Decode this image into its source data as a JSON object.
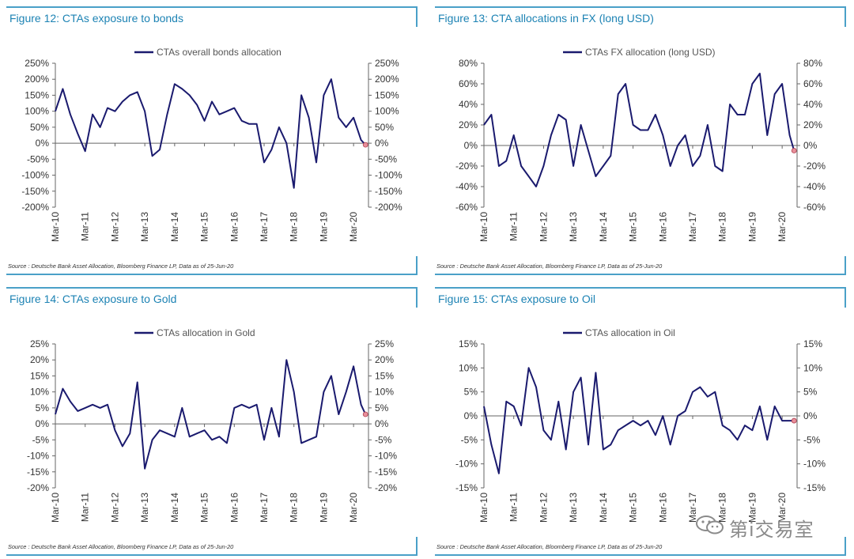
{
  "colors": {
    "line": "#1a1a6e",
    "accent": "#4aa0c8",
    "title": "#1d83b4",
    "endpoint": "#e88f9a"
  },
  "source_text": "Source : Deutsche Bank Asset Allocation, Bloomberg Finance LP, Data as of 25-Jun-20",
  "watermark": {
    "text": "第i交易室",
    "icon": "wechat-icon"
  },
  "chart_data": [
    {
      "type": "line",
      "title": "Figure 12: CTAs exposure to bonds",
      "series": [
        {
          "name": "CTAs overall bonds allocation",
          "x": [
            2010.0,
            2010.25,
            2010.5,
            2010.75,
            2011.0,
            2011.25,
            2011.5,
            2011.75,
            2012.0,
            2012.25,
            2012.5,
            2012.75,
            2013.0,
            2013.25,
            2013.5,
            2013.75,
            2014.0,
            2014.25,
            2014.5,
            2014.75,
            2015.0,
            2015.25,
            2015.5,
            2015.75,
            2016.0,
            2016.25,
            2016.5,
            2016.75,
            2017.0,
            2017.25,
            2017.5,
            2017.75,
            2018.0,
            2018.25,
            2018.5,
            2018.75,
            2019.0,
            2019.25,
            2019.5,
            2019.75,
            2020.0,
            2020.25,
            2020.4
          ],
          "values": [
            100,
            170,
            90,
            30,
            -25,
            90,
            50,
            110,
            100,
            130,
            150,
            160,
            100,
            -40,
            -20,
            90,
            185,
            170,
            150,
            120,
            70,
            130,
            90,
            100,
            110,
            70,
            60,
            60,
            -60,
            -20,
            50,
            0,
            -140,
            150,
            80,
            -60,
            150,
            200,
            80,
            50,
            80,
            10,
            -5
          ]
        }
      ],
      "ylim": [
        -200,
        250
      ],
      "yticks": [
        -200,
        -150,
        -100,
        -50,
        0,
        50,
        100,
        150,
        200,
        250
      ],
      "ytick_labels": [
        "-200%",
        "-150%",
        "-100%",
        "-50%",
        "0%",
        "50%",
        "100%",
        "150%",
        "200%",
        "250%"
      ],
      "xticks": [
        2010,
        2011,
        2012,
        2013,
        2014,
        2015,
        2016,
        2017,
        2018,
        2019,
        2020
      ],
      "xtick_labels": [
        "Mar-10",
        "Mar-11",
        "Mar-12",
        "Mar-13",
        "Mar-14",
        "Mar-15",
        "Mar-16",
        "Mar-17",
        "Mar-18",
        "Mar-19",
        "Mar-20"
      ],
      "xlim": [
        2010,
        2020.5
      ],
      "legend_position": "top-center"
    },
    {
      "type": "line",
      "title": "Figure 13: CTA allocations in FX (long USD)",
      "series": [
        {
          "name": "CTAs FX allocation (long USD)",
          "x": [
            2010.0,
            2010.25,
            2010.5,
            2010.75,
            2011.0,
            2011.25,
            2011.5,
            2011.75,
            2012.0,
            2012.25,
            2012.5,
            2012.75,
            2013.0,
            2013.25,
            2013.5,
            2013.75,
            2014.0,
            2014.25,
            2014.5,
            2014.75,
            2015.0,
            2015.25,
            2015.5,
            2015.75,
            2016.0,
            2016.25,
            2016.5,
            2016.75,
            2017.0,
            2017.25,
            2017.5,
            2017.75,
            2018.0,
            2018.25,
            2018.5,
            2018.75,
            2019.0,
            2019.25,
            2019.5,
            2019.75,
            2020.0,
            2020.25,
            2020.4
          ],
          "values": [
            20,
            30,
            -20,
            -15,
            10,
            -20,
            -30,
            -40,
            -20,
            10,
            30,
            25,
            -20,
            20,
            -5,
            -30,
            -20,
            -10,
            50,
            60,
            20,
            15,
            15,
            30,
            10,
            -20,
            0,
            10,
            -20,
            -10,
            20,
            -20,
            -25,
            40,
            30,
            30,
            60,
            70,
            10,
            50,
            60,
            10,
            -5
          ]
        }
      ],
      "ylim": [
        -60,
        80
      ],
      "yticks": [
        -60,
        -40,
        -20,
        0,
        20,
        40,
        60,
        80
      ],
      "ytick_labels": [
        "-60%",
        "-40%",
        "-20%",
        "0%",
        "20%",
        "40%",
        "60%",
        "80%"
      ],
      "xticks": [
        2010,
        2011,
        2012,
        2013,
        2014,
        2015,
        2016,
        2017,
        2018,
        2019,
        2020
      ],
      "xtick_labels": [
        "Mar-10",
        "Mar-11",
        "Mar-12",
        "Mar-13",
        "Mar-14",
        "Mar-15",
        "Mar-16",
        "Mar-17",
        "Mar-18",
        "Mar-19",
        "Mar-20"
      ],
      "xlim": [
        2010,
        2020.5
      ],
      "legend_position": "top-center"
    },
    {
      "type": "line",
      "title": "Figure 14: CTAs exposure to Gold",
      "series": [
        {
          "name": "CTAs allocation in Gold",
          "x": [
            2010.0,
            2010.25,
            2010.5,
            2010.75,
            2011.0,
            2011.25,
            2011.5,
            2011.75,
            2012.0,
            2012.25,
            2012.5,
            2012.75,
            2013.0,
            2013.25,
            2013.5,
            2013.75,
            2014.0,
            2014.25,
            2014.5,
            2014.75,
            2015.0,
            2015.25,
            2015.5,
            2015.75,
            2016.0,
            2016.25,
            2016.5,
            2016.75,
            2017.0,
            2017.25,
            2017.5,
            2017.75,
            2018.0,
            2018.25,
            2018.5,
            2018.75,
            2019.0,
            2019.25,
            2019.5,
            2019.75,
            2020.0,
            2020.25,
            2020.4
          ],
          "values": [
            3,
            11,
            7,
            4,
            5,
            6,
            5,
            6,
            -2,
            -7,
            -3,
            13,
            -14,
            -5,
            -2,
            -3,
            -4,
            5,
            -4,
            -3,
            -2,
            -5,
            -4,
            -6,
            5,
            6,
            5,
            6,
            -5,
            5,
            -4,
            20,
            10,
            -6,
            -5,
            -4,
            10,
            15,
            3,
            10,
            18,
            6,
            3
          ]
        }
      ],
      "ylim": [
        -20,
        25
      ],
      "yticks": [
        -20,
        -15,
        -10,
        -5,
        0,
        5,
        10,
        15,
        20,
        25
      ],
      "ytick_labels": [
        "-20%",
        "-15%",
        "-10%",
        "-5%",
        "0%",
        "5%",
        "10%",
        "15%",
        "20%",
        "25%"
      ],
      "xticks": [
        2010,
        2011,
        2012,
        2013,
        2014,
        2015,
        2016,
        2017,
        2018,
        2019,
        2020
      ],
      "xtick_labels": [
        "Mar-10",
        "Mar-11",
        "Mar-12",
        "Mar-13",
        "Mar-14",
        "Mar-15",
        "Mar-16",
        "Mar-17",
        "Mar-18",
        "Mar-19",
        "Mar-20"
      ],
      "xlim": [
        2010,
        2020.5
      ],
      "legend_position": "top-center"
    },
    {
      "type": "line",
      "title": "Figure 15: CTAs exposure to Oil",
      "series": [
        {
          "name": "CTAs allocation in Oil",
          "x": [
            2010.0,
            2010.25,
            2010.5,
            2010.75,
            2011.0,
            2011.25,
            2011.5,
            2011.75,
            2012.0,
            2012.25,
            2012.5,
            2012.75,
            2013.0,
            2013.25,
            2013.5,
            2013.75,
            2014.0,
            2014.25,
            2014.5,
            2014.75,
            2015.0,
            2015.25,
            2015.5,
            2015.75,
            2016.0,
            2016.25,
            2016.5,
            2016.75,
            2017.0,
            2017.25,
            2017.5,
            2017.75,
            2018.0,
            2018.25,
            2018.5,
            2018.75,
            2019.0,
            2019.25,
            2019.5,
            2019.75,
            2020.0,
            2020.25,
            2020.4
          ],
          "values": [
            2,
            -6,
            -12,
            3,
            2,
            -2,
            10,
            6,
            -3,
            -5,
            3,
            -7,
            5,
            8,
            -6,
            9,
            -7,
            -6,
            -3,
            -2,
            -1,
            -2,
            -1,
            -4,
            0,
            -6,
            0,
            1,
            5,
            6,
            4,
            5,
            -2,
            -3,
            -5,
            -2,
            -3,
            2,
            -5,
            2,
            -1,
            -1,
            -1
          ]
        }
      ],
      "ylim": [
        -15,
        15
      ],
      "yticks": [
        -15,
        -10,
        -5,
        0,
        5,
        10,
        15
      ],
      "ytick_labels": [
        "-15%",
        "-10%",
        "-5%",
        "0%",
        "5%",
        "10%",
        "15%"
      ],
      "xticks": [
        2010,
        2011,
        2012,
        2013,
        2014,
        2015,
        2016,
        2017,
        2018,
        2019,
        2020
      ],
      "xtick_labels": [
        "Mar-10",
        "Mar-11",
        "Mar-12",
        "Mar-13",
        "Mar-14",
        "Mar-15",
        "Mar-16",
        "Mar-17",
        "Mar-18",
        "Mar-19",
        "Mar-20"
      ],
      "xlim": [
        2010,
        2020.5
      ],
      "legend_position": "top-center"
    }
  ]
}
